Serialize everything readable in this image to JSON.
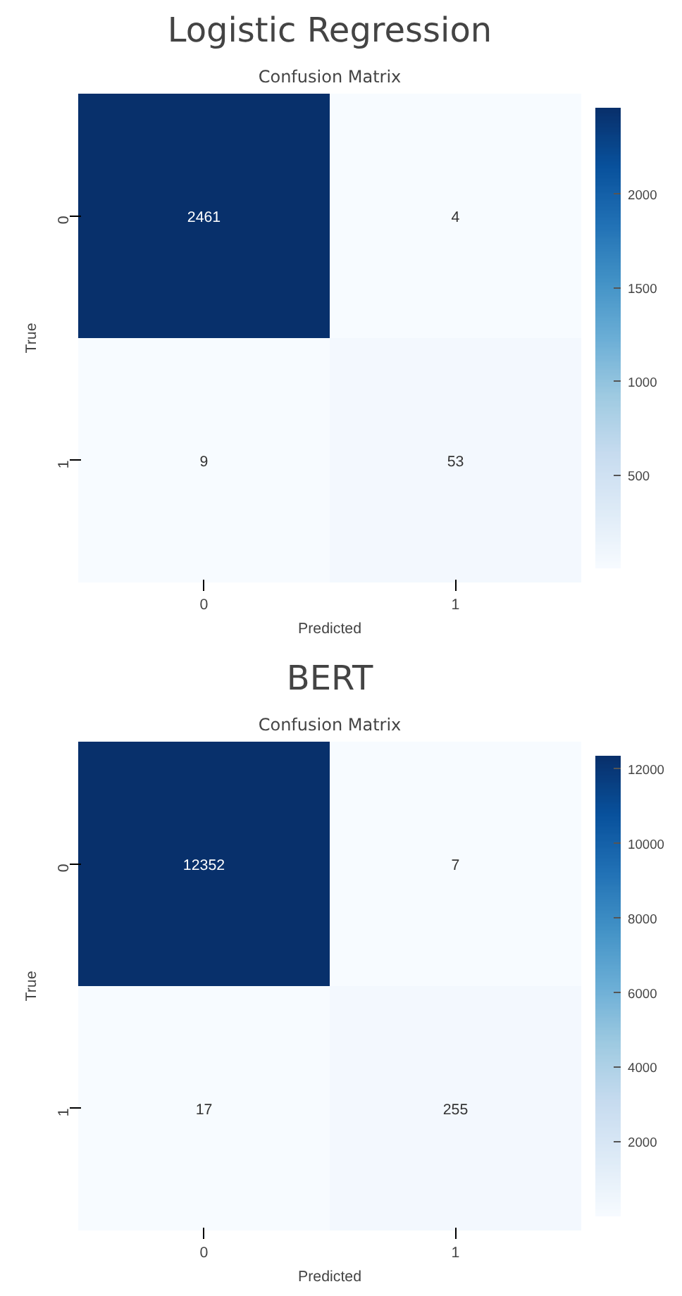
{
  "chart_data": [
    {
      "type": "heatmap",
      "title": "Logistic Regression",
      "subtitle": "Confusion Matrix",
      "xlabel": "Predicted",
      "ylabel": "True",
      "categories": [
        "0",
        "1"
      ],
      "y_categories": [
        "0",
        "1"
      ],
      "cells": [
        [
          2461,
          4
        ],
        [
          9,
          53
        ]
      ],
      "clim": [
        4,
        2461
      ],
      "cticks": [
        500,
        1000,
        1500,
        2000
      ],
      "data_labels": true
    },
    {
      "type": "heatmap",
      "title": "BERT",
      "subtitle": "Confusion Matrix",
      "xlabel": "Predicted",
      "ylabel": "True",
      "categories": [
        "0",
        "1"
      ],
      "y_categories": [
        "0",
        "1"
      ],
      "cells": [
        [
          12352,
          7
        ],
        [
          17,
          255
        ]
      ],
      "clim": [
        7,
        12352
      ],
      "cticks": [
        2000,
        4000,
        6000,
        8000,
        10000,
        12000
      ],
      "data_labels": true
    }
  ]
}
